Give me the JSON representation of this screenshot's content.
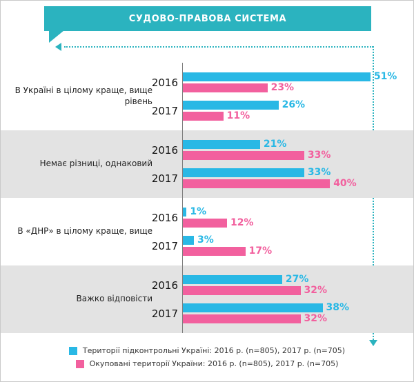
{
  "header": {
    "title": "СУДОВО-ПРАВОВА СИСТЕМА"
  },
  "colors": {
    "teal": "#2bb3bf",
    "blue": "#29b8e5",
    "pink": "#f2609e",
    "alt_row_bg": "#e3e3e3",
    "axis": "#7f7f7f"
  },
  "chart_data": {
    "type": "bar",
    "orientation": "horizontal",
    "title": "СУДОВО-ПРАВОВА СИСТЕМА",
    "unit": "%",
    "xlim": [
      0,
      55
    ],
    "grid": false,
    "legend_position": "bottom",
    "groups": [
      {
        "category": "В Україні в цілому краще, вище рівень",
        "rows": [
          {
            "year": "2016",
            "ukraine_controlled": 51,
            "occupied": 23
          },
          {
            "year": "2017",
            "ukraine_controlled": 26,
            "occupied": 11
          }
        ]
      },
      {
        "category": "Немає різниці, однаковий",
        "rows": [
          {
            "year": "2016",
            "ukraine_controlled": 21,
            "occupied": 33
          },
          {
            "year": "2017",
            "ukraine_controlled": 33,
            "occupied": 40
          }
        ]
      },
      {
        "category": "В «ДНР» в цілому краще, вище",
        "rows": [
          {
            "year": "2016",
            "ukraine_controlled": 1,
            "occupied": 12
          },
          {
            "year": "2017",
            "ukraine_controlled": 3,
            "occupied": 17
          }
        ]
      },
      {
        "category": "Важко відповісти",
        "rows": [
          {
            "year": "2016",
            "ukraine_controlled": 27,
            "occupied": 32
          },
          {
            "year": "2017",
            "ukraine_controlled": 38,
            "occupied": 32
          }
        ]
      }
    ],
    "legend": [
      {
        "series": "ukraine_controlled",
        "color": "#29b8e5",
        "label": "Території підконтрольні Україні: 2016 р. (n=805), 2017 р. (n=705)"
      },
      {
        "series": "occupied",
        "color": "#f2609e",
        "label": "Окуповані території України: 2016 р. (n=805), 2017 р. (n=705)"
      }
    ]
  }
}
